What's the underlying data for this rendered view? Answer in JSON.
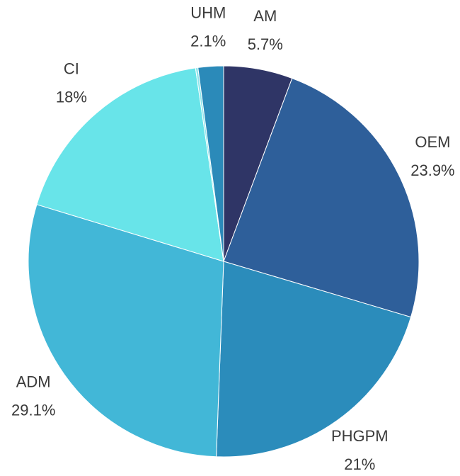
{
  "chart_data": {
    "type": "pie",
    "categories": [
      "AM",
      "OEM",
      "PHGPM",
      "ADM",
      "CI",
      null,
      "UHM"
    ],
    "values": [
      5.7,
      23.9,
      21,
      29.1,
      18,
      0.2,
      2.1
    ],
    "value_labels": [
      "5.7%",
      "23.9%",
      "21%",
      "29.1%",
      "18%",
      null,
      "2.1%"
    ],
    "colors": [
      "#2f3566",
      "#2e5f9a",
      "#2b8cbb",
      "#42b7d7",
      "#68e4e9",
      "#8fe6ec",
      "#2b8ab9"
    ]
  }
}
